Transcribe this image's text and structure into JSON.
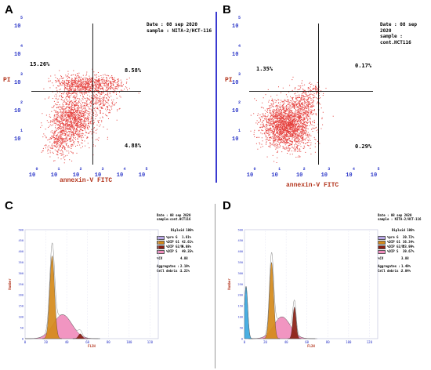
{
  "panels": {
    "a": {
      "label": "A"
    },
    "b": {
      "label": "B"
    },
    "c": {
      "label": "C"
    },
    "d": {
      "label": "D"
    }
  },
  "chart_data": [
    {
      "type": "scatter",
      "panel": "A",
      "info": {
        "date": "Date : 08 sep 2020",
        "sample": "sample : NITA-2/HCT-116"
      },
      "xlabel": "annexin-V FITC",
      "ylabel": "PI",
      "x_tick_exponents": [
        "0",
        "1",
        "2",
        "3",
        "4",
        "5"
      ],
      "y_tick_exponents": [
        "1",
        "2",
        "3",
        "4",
        "5"
      ],
      "x_tick_base": "10",
      "y_tick_base": "10",
      "xlim": [
        0,
        5
      ],
      "ylim": [
        0,
        5
      ],
      "quadrant_gate": {
        "x": 2.8,
        "y": 2.6
      },
      "quadrants": {
        "upper_left": "15.26%",
        "upper_right": "8.58%",
        "lower_right": "4.88%"
      },
      "clusters": [
        {
          "cx": 1.9,
          "cy": 1.6,
          "sx": 0.5,
          "sy": 0.45,
          "n": 1300
        },
        {
          "cx": 2.2,
          "cy": 2.85,
          "sx": 0.6,
          "sy": 0.18,
          "n": 650
        },
        {
          "cx": 3.4,
          "cy": 2.85,
          "sx": 0.45,
          "sy": 0.16,
          "n": 250
        },
        {
          "cx": 3.2,
          "cy": 2.2,
          "sx": 0.35,
          "sy": 0.25,
          "n": 200
        },
        {
          "cx": 1.2,
          "cy": 0.8,
          "sx": 0.3,
          "sy": 0.3,
          "n": 250
        }
      ],
      "marker_color": "#e0201c"
    },
    {
      "type": "scatter",
      "panel": "B",
      "info": {
        "date": "Date : 08 sep 2020",
        "sample": "sample : cont.HCT116"
      },
      "xlabel": "annexin-V FITC",
      "ylabel": "PI",
      "x_tick_exponents": [
        "0",
        "1",
        "2",
        "3",
        "4",
        "5"
      ],
      "y_tick_exponents": [
        "1",
        "2",
        "3",
        "4",
        "5"
      ],
      "x_tick_base": "10",
      "y_tick_base": "10",
      "xlim": [
        0,
        5
      ],
      "ylim": [
        0,
        5
      ],
      "quadrant_gate": {
        "x": 2.8,
        "y": 2.6
      },
      "quadrants": {
        "upper_left": "1.35%",
        "upper_right": "0.17%",
        "lower_right": "0.29%"
      },
      "clusters": [
        {
          "cx": 1.5,
          "cy": 1.4,
          "sx": 0.5,
          "sy": 0.4,
          "n": 2200
        },
        {
          "cx": 2.2,
          "cy": 2.2,
          "sx": 0.3,
          "sy": 0.3,
          "n": 350
        },
        {
          "cx": 2.7,
          "cy": 2.7,
          "sx": 0.15,
          "sy": 0.1,
          "n": 40
        }
      ],
      "marker_color": "#e0201c"
    },
    {
      "type": "area",
      "panel": "C",
      "info": {
        "date": "Date : 08 sep 2020",
        "sample": "sample:cont.HCT116",
        "diploid": "Diploid 100%"
      },
      "ylabel": "Number",
      "xlabel": "FL2H",
      "x_ticks": [
        "0",
        "20",
        "40",
        "60",
        "80",
        "100",
        "120"
      ],
      "y_ticks": [
        "0",
        "50",
        "100",
        "150",
        "200",
        "250",
        "300",
        "350",
        "400",
        "450",
        "500"
      ],
      "xlim": [
        0,
        128
      ],
      "ylim": [
        0,
        500
      ],
      "phases": [
        {
          "name": "%pre G",
          "value": "1.81%",
          "color": "#b8a6e6"
        },
        {
          "name": "%DIP G1",
          "value": "42.61%",
          "color": "#d58a1a"
        },
        {
          "name": "%DIP G2/M",
          "value": "6.08%",
          "color": "#8a1e12"
        },
        {
          "name": "%DIP S",
          "value": "49.35%",
          "color": "#f08cbc"
        }
      ],
      "cv_label": "%CV",
      "cv_value": "4.88",
      "aggregates_label": "Aggregates :",
      "aggregates_value": "2.19%",
      "debris_label": "Cell debris :",
      "debris_value": "1.22%",
      "peaks": [
        {
          "phase": "%DIP S",
          "center": 36,
          "width": 9,
          "height": 110
        },
        {
          "phase": "%DIP G1",
          "center": 26,
          "width": 2.3,
          "height": 380
        },
        {
          "phase": "%DIP G2/M",
          "center": 53,
          "width": 1.8,
          "height": 22
        }
      ]
    },
    {
      "type": "area",
      "panel": "D",
      "info": {
        "date": "Date : 08 sep 2020",
        "sample": "sample : NITA-2/HCT-116",
        "diploid": "Diploid 100%"
      },
      "ylabel": "Number",
      "xlabel": "FL2H",
      "x_ticks": [
        "0",
        "20",
        "40",
        "60",
        "80",
        "100",
        "120"
      ],
      "y_ticks": [
        "0",
        "50",
        "100",
        "150",
        "200",
        "250",
        "300",
        "350",
        "400",
        "450",
        "500"
      ],
      "xlim": [
        0,
        128
      ],
      "ylim": [
        0,
        500
      ],
      "phases": [
        {
          "name": "%pre G",
          "value": "20.72%",
          "color": "#b8a6e6"
        },
        {
          "name": "%DIP G1",
          "value": "36.34%",
          "color": "#d58a1a"
        },
        {
          "name": "%DIP G2/M",
          "value": "23.99%",
          "color": "#8a1e12"
        },
        {
          "name": "%DIP S",
          "value": "39.67%",
          "color": "#f08cbc"
        }
      ],
      "cv_label": "%CV",
      "cv_value": "3.88",
      "aggregates_label": "Aggregates :",
      "aggregates_value": "1.49%",
      "debris_label": "Cell debris :",
      "debris_value": "2.04%",
      "peaks": [
        {
          "phase": "pre",
          "center": 1.5,
          "width": 1.6,
          "height": 240
        },
        {
          "phase": "%DIP S",
          "center": 36,
          "width": 8,
          "height": 100
        },
        {
          "phase": "%DIP G1",
          "center": 26,
          "width": 2.0,
          "height": 350
        },
        {
          "phase": "%DIP G2/M",
          "center": 48,
          "width": 1.6,
          "height": 145
        }
      ],
      "pre_color": "#3aa8e0"
    }
  ]
}
